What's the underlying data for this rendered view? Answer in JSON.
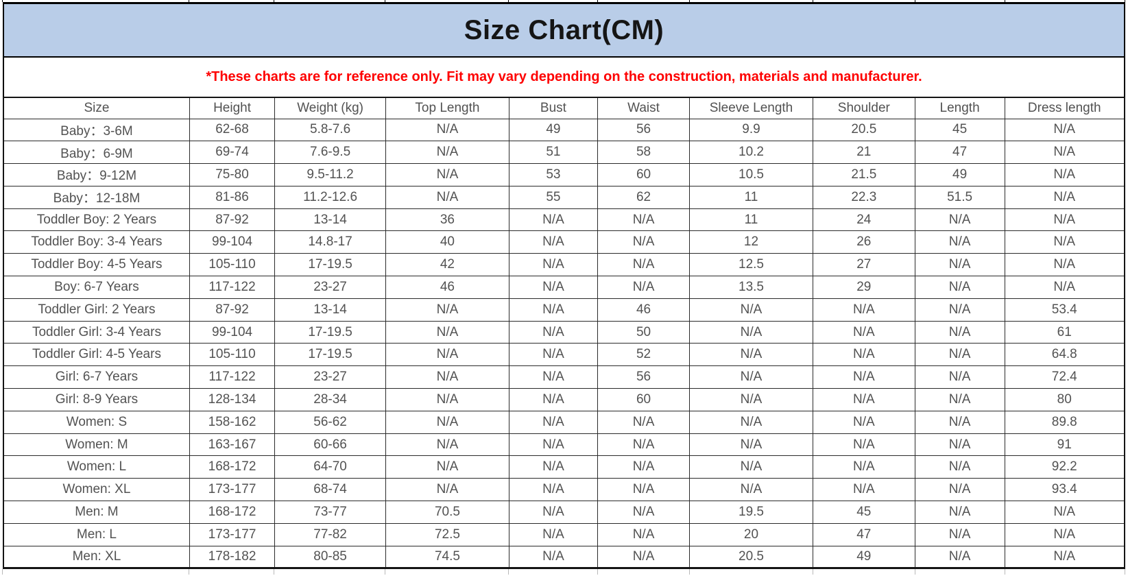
{
  "banner": {
    "title": "Size Chart(CM)",
    "background_color": "#b9cde8"
  },
  "note": {
    "text": "*These charts are for reference only. Fit may vary depending on the construction, materials and manufacturer.",
    "color": "#fe0000"
  },
  "table": {
    "headers": [
      "Size",
      "Height",
      "Weight (kg)",
      "Top Length",
      "Bust",
      "Waist",
      "Sleeve Length",
      "Shoulder",
      "Length",
      "Dress length"
    ],
    "rows": [
      [
        "Baby：3-6M",
        "62-68",
        "5.8-7.6",
        "N/A",
        "49",
        "56",
        "9.9",
        "20.5",
        "45",
        "N/A"
      ],
      [
        "Baby：6-9M",
        "69-74",
        "7.6-9.5",
        "N/A",
        "51",
        "58",
        "10.2",
        "21",
        "47",
        "N/A"
      ],
      [
        "Baby：9-12M",
        "75-80",
        "9.5-11.2",
        "N/A",
        "53",
        "60",
        "10.5",
        "21.5",
        "49",
        "N/A"
      ],
      [
        "Baby：12-18M",
        "81-86",
        "11.2-12.6",
        "N/A",
        "55",
        "62",
        "11",
        "22.3",
        "51.5",
        "N/A"
      ],
      [
        "Toddler Boy: 2 Years",
        "87-92",
        "13-14",
        "36",
        "N/A",
        "N/A",
        "11",
        "24",
        "N/A",
        "N/A"
      ],
      [
        "Toddler Boy: 3-4 Years",
        "99-104",
        "14.8-17",
        "40",
        "N/A",
        "N/A",
        "12",
        "26",
        "N/A",
        "N/A"
      ],
      [
        "Toddler Boy: 4-5 Years",
        "105-110",
        "17-19.5",
        "42",
        "N/A",
        "N/A",
        "12.5",
        "27",
        "N/A",
        "N/A"
      ],
      [
        "Boy: 6-7 Years",
        "117-122",
        "23-27",
        "46",
        "N/A",
        "N/A",
        "13.5",
        "29",
        "N/A",
        "N/A"
      ],
      [
        "Toddler Girl: 2 Years",
        "87-92",
        "13-14",
        "N/A",
        "N/A",
        "46",
        "N/A",
        "N/A",
        "N/A",
        "53.4"
      ],
      [
        "Toddler Girl: 3-4 Years",
        "99-104",
        "17-19.5",
        "N/A",
        "N/A",
        "50",
        "N/A",
        "N/A",
        "N/A",
        "61"
      ],
      [
        "Toddler Girl: 4-5 Years",
        "105-110",
        "17-19.5",
        "N/A",
        "N/A",
        "52",
        "N/A",
        "N/A",
        "N/A",
        "64.8"
      ],
      [
        "Girl: 6-7 Years",
        "117-122",
        "23-27",
        "N/A",
        "N/A",
        "56",
        "N/A",
        "N/A",
        "N/A",
        "72.4"
      ],
      [
        "Girl: 8-9 Years",
        "128-134",
        "28-34",
        "N/A",
        "N/A",
        "60",
        "N/A",
        "N/A",
        "N/A",
        "80"
      ],
      [
        "Women: S",
        "158-162",
        "56-62",
        "N/A",
        "N/A",
        "N/A",
        "N/A",
        "N/A",
        "N/A",
        "89.8"
      ],
      [
        "Women: M",
        "163-167",
        "60-66",
        "N/A",
        "N/A",
        "N/A",
        "N/A",
        "N/A",
        "N/A",
        "91"
      ],
      [
        "Women: L",
        "168-172",
        "64-70",
        "N/A",
        "N/A",
        "N/A",
        "N/A",
        "N/A",
        "N/A",
        "92.2"
      ],
      [
        "Women: XL",
        "173-177",
        "68-74",
        "N/A",
        "N/A",
        "N/A",
        "N/A",
        "N/A",
        "N/A",
        "93.4"
      ],
      [
        "Men: M",
        "168-172",
        "73-77",
        "70.5",
        "N/A",
        "N/A",
        "19.5",
        "45",
        "N/A",
        "N/A"
      ],
      [
        "Men: L",
        "173-177",
        "77-82",
        "72.5",
        "N/A",
        "N/A",
        "20",
        "47",
        "N/A",
        "N/A"
      ],
      [
        "Men: XL",
        "178-182",
        "80-85",
        "74.5",
        "N/A",
        "N/A",
        "20.5",
        "49",
        "N/A",
        "N/A"
      ]
    ]
  }
}
